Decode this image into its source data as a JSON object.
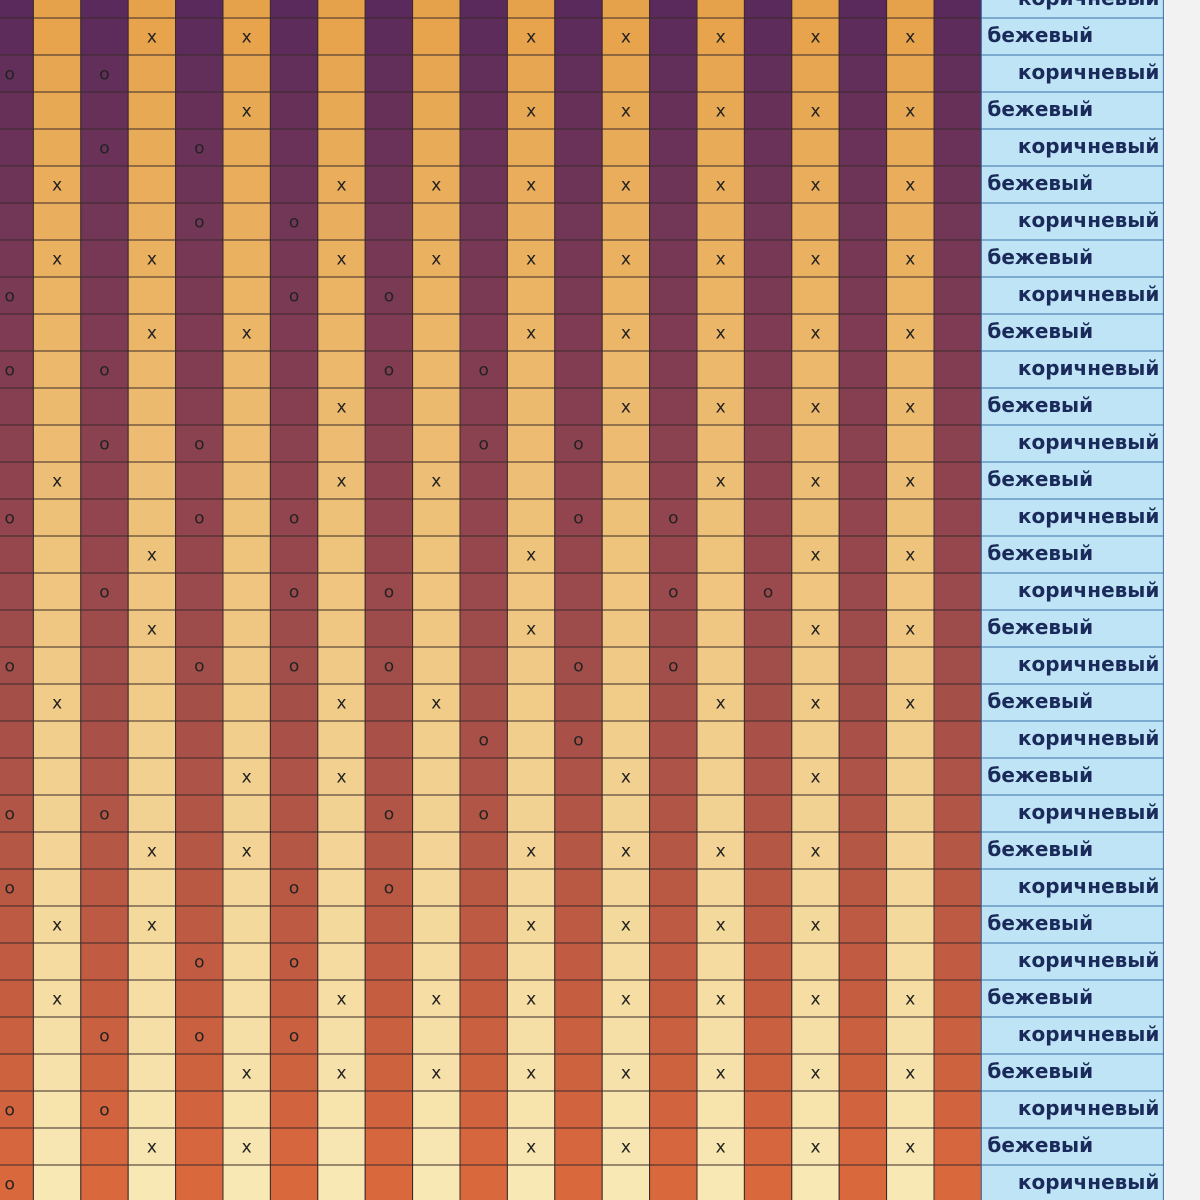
{
  "grid": {
    "colors": {
      "dark_top": "#5a2a5c",
      "dark_bottom": "#d9683c",
      "light_top": "#e6a24a",
      "light_bottom": "#f8e8b4",
      "label_bg": "#bfe4f6",
      "label_text": "#1a2a5a"
    },
    "rows": [
      {
        "label": "коричневый",
        "cells": [
          null,
          null,
          null,
          null,
          null,
          null,
          null,
          null,
          null,
          null,
          null,
          null,
          null,
          null,
          null,
          null,
          null,
          null,
          null,
          null,
          null
        ]
      },
      {
        "label": "бежевый",
        "cells": [
          null,
          null,
          null,
          "x",
          null,
          "x",
          null,
          null,
          null,
          null,
          null,
          "x",
          null,
          "x",
          null,
          "x",
          null,
          "x",
          null,
          "x",
          null
        ]
      },
      {
        "label": "коричневый",
        "cells": [
          "o",
          null,
          "o",
          null,
          null,
          null,
          null,
          null,
          null,
          null,
          null,
          null,
          null,
          null,
          null,
          null,
          null,
          null,
          null,
          null,
          null
        ]
      },
      {
        "label": "бежевый",
        "cells": [
          null,
          null,
          null,
          null,
          null,
          "x",
          null,
          null,
          null,
          null,
          null,
          "x",
          null,
          "x",
          null,
          "x",
          null,
          "x",
          null,
          "x",
          null
        ]
      },
      {
        "label": "коричневый",
        "cells": [
          null,
          null,
          "o",
          null,
          "o",
          null,
          null,
          null,
          null,
          null,
          null,
          null,
          null,
          null,
          null,
          null,
          null,
          null,
          null,
          null,
          null
        ]
      },
      {
        "label": "бежевый",
        "cells": [
          null,
          "x",
          null,
          null,
          null,
          null,
          null,
          "x",
          null,
          "x",
          null,
          "x",
          null,
          "x",
          null,
          "x",
          null,
          "x",
          null,
          "x",
          null
        ]
      },
      {
        "label": "коричневый",
        "cells": [
          null,
          null,
          null,
          null,
          "o",
          null,
          "o",
          null,
          null,
          null,
          null,
          null,
          null,
          null,
          null,
          null,
          null,
          null,
          null,
          null,
          null
        ]
      },
      {
        "label": "бежевый",
        "cells": [
          null,
          "x",
          null,
          "x",
          null,
          null,
          null,
          "x",
          null,
          "x",
          null,
          "x",
          null,
          "x",
          null,
          "x",
          null,
          "x",
          null,
          "x",
          null
        ]
      },
      {
        "label": "коричневый",
        "cells": [
          "o",
          null,
          null,
          null,
          null,
          null,
          "o",
          null,
          "o",
          null,
          null,
          null,
          null,
          null,
          null,
          null,
          null,
          null,
          null,
          null,
          null
        ]
      },
      {
        "label": "бежевый",
        "cells": [
          null,
          null,
          null,
          "x",
          null,
          "x",
          null,
          null,
          null,
          null,
          null,
          "x",
          null,
          "x",
          null,
          "x",
          null,
          "x",
          null,
          "x",
          null
        ]
      },
      {
        "label": "коричневый",
        "cells": [
          "o",
          null,
          "o",
          null,
          null,
          null,
          null,
          null,
          "o",
          null,
          "o",
          null,
          null,
          null,
          null,
          null,
          null,
          null,
          null,
          null,
          null
        ]
      },
      {
        "label": "бежевый",
        "cells": [
          null,
          null,
          null,
          null,
          null,
          null,
          null,
          "x",
          null,
          null,
          null,
          null,
          null,
          "x",
          null,
          "x",
          null,
          "x",
          null,
          "x",
          null
        ]
      },
      {
        "label": "коричневый",
        "cells": [
          null,
          null,
          "o",
          null,
          "o",
          null,
          null,
          null,
          null,
          null,
          "o",
          null,
          "o",
          null,
          null,
          null,
          null,
          null,
          null,
          null,
          null
        ]
      },
      {
        "label": "бежевый",
        "cells": [
          null,
          "x",
          null,
          null,
          null,
          null,
          null,
          "x",
          null,
          "x",
          null,
          null,
          null,
          null,
          null,
          "x",
          null,
          "x",
          null,
          "x",
          null
        ]
      },
      {
        "label": "коричневый",
        "cells": [
          "o",
          null,
          null,
          null,
          "o",
          null,
          "o",
          null,
          null,
          null,
          null,
          null,
          "o",
          null,
          "o",
          null,
          null,
          null,
          null,
          null,
          null
        ]
      },
      {
        "label": "бежевый",
        "cells": [
          null,
          null,
          null,
          "x",
          null,
          null,
          null,
          null,
          null,
          null,
          null,
          "x",
          null,
          null,
          null,
          null,
          null,
          "x",
          null,
          "x",
          null
        ]
      },
      {
        "label": "коричневый",
        "cells": [
          null,
          null,
          "o",
          null,
          null,
          null,
          "o",
          null,
          "o",
          null,
          null,
          null,
          null,
          null,
          "o",
          null,
          "o",
          null,
          null,
          null,
          null
        ]
      },
      {
        "label": "бежевый",
        "cells": [
          null,
          null,
          null,
          "x",
          null,
          null,
          null,
          null,
          null,
          null,
          null,
          "x",
          null,
          null,
          null,
          null,
          null,
          "x",
          null,
          "x",
          null
        ]
      },
      {
        "label": "коричневый",
        "cells": [
          "o",
          null,
          null,
          null,
          "o",
          null,
          "o",
          null,
          "o",
          null,
          null,
          null,
          "o",
          null,
          "o",
          null,
          null,
          null,
          null,
          null,
          null
        ]
      },
      {
        "label": "бежевый",
        "cells": [
          null,
          "x",
          null,
          null,
          null,
          null,
          null,
          "x",
          null,
          "x",
          null,
          null,
          null,
          null,
          null,
          "x",
          null,
          "x",
          null,
          "x",
          null
        ]
      },
      {
        "label": "коричневый",
        "cells": [
          null,
          null,
          null,
          null,
          null,
          null,
          null,
          null,
          null,
          null,
          "o",
          null,
          "o",
          null,
          null,
          null,
          null,
          null,
          null,
          null,
          null
        ]
      },
      {
        "label": "бежевый",
        "cells": [
          null,
          null,
          null,
          null,
          null,
          "x",
          null,
          "x",
          null,
          null,
          null,
          null,
          null,
          "x",
          null,
          null,
          null,
          "x",
          null,
          null,
          null
        ]
      },
      {
        "label": "коричневый",
        "cells": [
          "o",
          null,
          "o",
          null,
          null,
          null,
          null,
          null,
          "o",
          null,
          "o",
          null,
          null,
          null,
          null,
          null,
          null,
          null,
          null,
          null,
          null
        ]
      },
      {
        "label": "бежевый",
        "cells": [
          null,
          null,
          null,
          "x",
          null,
          "x",
          null,
          null,
          null,
          null,
          null,
          "x",
          null,
          "x",
          null,
          "x",
          null,
          "x",
          null,
          null,
          null
        ]
      },
      {
        "label": "коричневый",
        "cells": [
          "o",
          null,
          null,
          null,
          null,
          null,
          "o",
          null,
          "o",
          null,
          null,
          null,
          null,
          null,
          null,
          null,
          null,
          null,
          null,
          null,
          null
        ]
      },
      {
        "label": "бежевый",
        "cells": [
          null,
          "x",
          null,
          "x",
          null,
          null,
          null,
          null,
          null,
          null,
          null,
          "x",
          null,
          "x",
          null,
          "x",
          null,
          "x",
          null,
          null,
          null
        ]
      },
      {
        "label": "коричневый",
        "cells": [
          null,
          null,
          null,
          null,
          "o",
          null,
          "o",
          null,
          null,
          null,
          null,
          null,
          null,
          null,
          null,
          null,
          null,
          null,
          null,
          null,
          null
        ]
      },
      {
        "label": "бежевый",
        "cells": [
          null,
          "x",
          null,
          null,
          null,
          null,
          null,
          "x",
          null,
          "x",
          null,
          "x",
          null,
          "x",
          null,
          "x",
          null,
          "x",
          null,
          "x",
          null
        ]
      },
      {
        "label": "коричневый",
        "cells": [
          null,
          null,
          "o",
          null,
          "o",
          null,
          "o",
          null,
          null,
          null,
          null,
          null,
          null,
          null,
          null,
          null,
          null,
          null,
          null,
          null,
          null
        ]
      },
      {
        "label": "бежевый",
        "cells": [
          null,
          null,
          null,
          null,
          null,
          "x",
          null,
          "x",
          null,
          "x",
          null,
          "x",
          null,
          "x",
          null,
          "x",
          null,
          "x",
          null,
          "x",
          null
        ]
      },
      {
        "label": "коричневый",
        "cells": [
          "o",
          null,
          "o",
          null,
          null,
          null,
          null,
          null,
          null,
          null,
          null,
          null,
          null,
          null,
          null,
          null,
          null,
          null,
          null,
          null,
          null
        ]
      },
      {
        "label": "бежевый",
        "cells": [
          null,
          null,
          null,
          "x",
          null,
          "x",
          null,
          null,
          null,
          null,
          null,
          "x",
          null,
          "x",
          null,
          "x",
          null,
          "x",
          null,
          "x",
          null
        ]
      },
      {
        "label": "коричневый",
        "cells": [
          "o",
          null,
          null,
          null,
          null,
          null,
          null,
          null,
          null,
          null,
          null,
          null,
          null,
          null,
          null,
          null,
          null,
          null,
          null,
          null,
          null
        ]
      }
    ]
  }
}
